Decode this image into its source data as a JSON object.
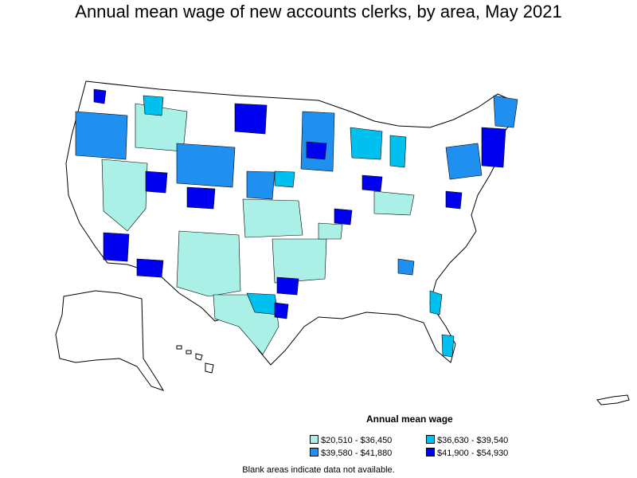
{
  "title": "Annual mean wage of new accounts clerks, by area, May 2021",
  "legend": {
    "title": "Annual mean wage",
    "items": [
      {
        "label": "$20,510 - $36,450",
        "color": "#aaf0e6"
      },
      {
        "label": "$36,630 - $39,540",
        "color": "#00c0f0"
      },
      {
        "label": "$39,580 - $41,880",
        "color": "#2090f0"
      },
      {
        "label": "$41,900 - $54,930",
        "color": "#0000f0"
      }
    ]
  },
  "note": "Blank areas indicate data not available.",
  "colors": {
    "outline": "#000000",
    "no_data": "#ffffff"
  }
}
